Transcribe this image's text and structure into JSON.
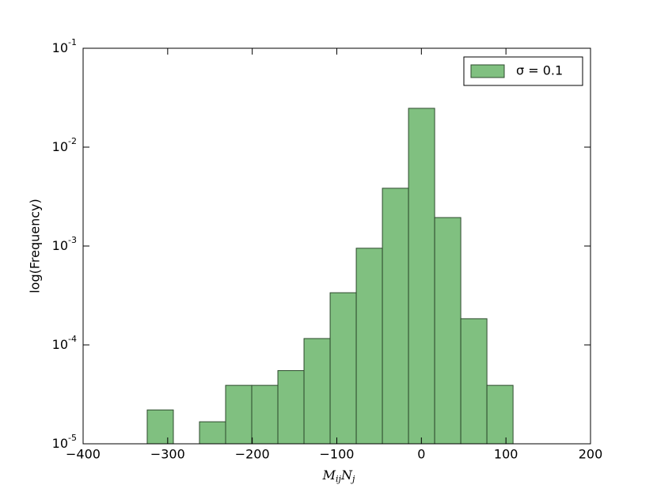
{
  "chart_data": {
    "type": "histogram",
    "xlabel": "MijNj",
    "ylabel": "log(Frequency)",
    "bins": [
      -324.2,
      -293.3,
      -262.4,
      -231.5,
      -200.6,
      -169.7,
      -138.8,
      -107.9,
      -77.0,
      -46.1,
      -15.2,
      15.7,
      46.6,
      77.5,
      108.4
    ],
    "series": [
      {
        "name": "σ = 0.1",
        "color": "#80c080",
        "values": [
          2.2e-05,
          0,
          1.67e-05,
          3.9e-05,
          3.9e-05,
          5.5e-05,
          0.000116,
          0.000337,
          0.00095,
          0.00384,
          0.0247,
          0.00194,
          0.000184,
          3.9e-05
        ]
      }
    ],
    "xlim": [
      -400,
      200
    ],
    "xticks": [
      {
        "value": -400,
        "label": "−400"
      },
      {
        "value": -300,
        "label": "−300"
      },
      {
        "value": -200,
        "label": "−200"
      },
      {
        "value": -100,
        "label": "−100"
      },
      0,
      100,
      200
    ],
    "ylim": [
      1e-05,
      0.1
    ],
    "yticks": [
      {
        "value": 1e-05,
        "label": "10-5"
      },
      {
        "value": 0.0001,
        "label": "10-4"
      },
      {
        "value": 0.001,
        "label": "10-3"
      },
      {
        "value": 0.01,
        "label": "10-2"
      },
      {
        "value": 0.1,
        "label": "10-1"
      }
    ],
    "log_y": true,
    "legend": "upper right"
  }
}
